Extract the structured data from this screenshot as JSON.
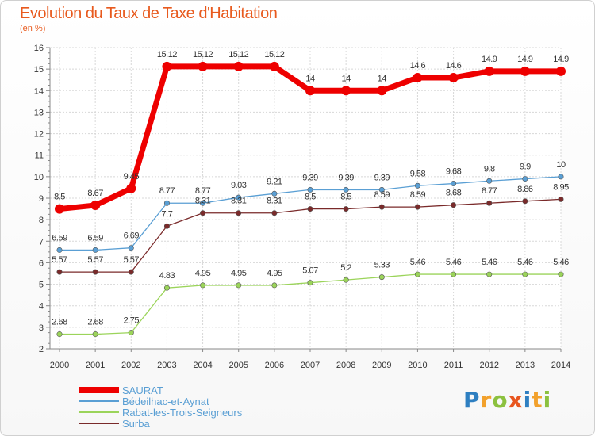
{
  "title": "Evolution du Taux de Taxe d'Habitation",
  "subtitle": "(en %)",
  "logo": [
    "P",
    "r",
    "o",
    "x",
    "i",
    "t",
    "i"
  ],
  "chart_data": {
    "type": "line",
    "x": [
      2000,
      2001,
      2002,
      2003,
      2004,
      2005,
      2006,
      2007,
      2008,
      2009,
      2010,
      2011,
      2012,
      2013,
      2014
    ],
    "ylim": [
      2,
      16
    ],
    "yticks": [
      2,
      3,
      4,
      5,
      6,
      7,
      8,
      9,
      10,
      11,
      12,
      13,
      14,
      15,
      16
    ],
    "grid": true,
    "legend_position": "bottom-left",
    "series": [
      {
        "name": "SAURAT",
        "color": "#ee0000",
        "values": [
          8.5,
          8.67,
          9.45,
          15.12,
          15.12,
          15.12,
          15.12,
          14,
          14,
          14,
          14.6,
          14.6,
          14.9,
          14.9,
          14.9
        ],
        "labels": [
          "8.5",
          "8.67",
          "9.45",
          "15.12",
          "15.12",
          "15.12",
          "15.12",
          "14",
          "14",
          "14",
          "14.6",
          "14.6",
          "14.9",
          "14.9",
          "14.9"
        ]
      },
      {
        "name": "Bédeilhac-et-Aynat",
        "color": "#5a9fd4",
        "values": [
          6.59,
          6.59,
          6.69,
          8.77,
          8.77,
          9.03,
          9.21,
          9.39,
          9.39,
          9.39,
          9.58,
          9.68,
          9.8,
          9.9,
          10
        ],
        "labels": [
          "6.59",
          "6.59",
          "6.69",
          "8.77",
          "8.77",
          "9.03",
          "9.21",
          "9.39",
          "9.39",
          "9.39",
          "9.58",
          "9.68",
          "9.8",
          "9.9",
          "10"
        ]
      },
      {
        "name": "Rabat-les-Trois-Seigneurs",
        "color": "#9bd45a",
        "values": [
          2.68,
          2.68,
          2.75,
          4.83,
          4.95,
          4.95,
          4.95,
          5.07,
          5.2,
          5.33,
          5.46,
          5.46,
          5.46,
          5.46,
          5.46
        ],
        "labels": [
          "2.68",
          "2.68",
          "2.75",
          "4.83",
          "4.95",
          "4.95",
          "4.95",
          "5.07",
          "5.2",
          "5.33",
          "5.46",
          "5.46",
          "5.46",
          "5.46",
          "5.46"
        ]
      },
      {
        "name": "Surba",
        "color": "#7a2a2a",
        "values": [
          5.57,
          5.57,
          5.57,
          7.7,
          8.31,
          8.31,
          8.31,
          8.5,
          8.5,
          8.59,
          8.59,
          8.68,
          8.77,
          8.86,
          8.95
        ],
        "labels": [
          "5.57",
          "5.57",
          "5.57",
          "7.7",
          "8.31",
          "8.31",
          "8.31",
          "8.5",
          "8.5",
          "8.59",
          "8.59",
          "8.68",
          "8.77",
          "8.86",
          "8.95"
        ]
      }
    ]
  }
}
